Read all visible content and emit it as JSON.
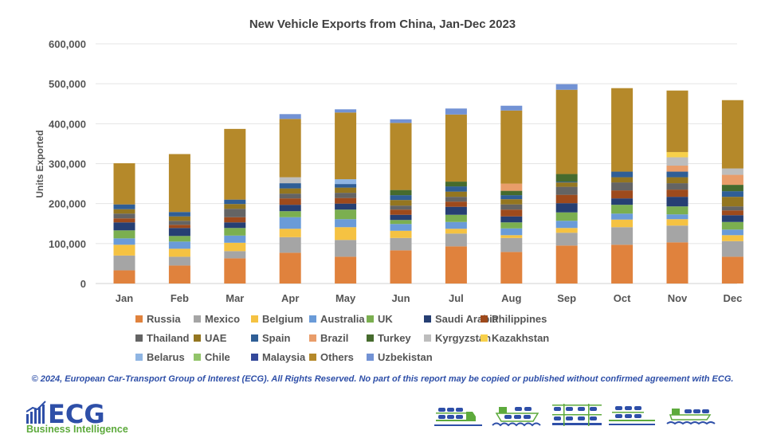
{
  "chart_data": {
    "type": "bar",
    "stacked": true,
    "title": "New Vehicle Exports from China, Jan-Dec 2023",
    "xlabel": "",
    "ylabel": "Units Exported",
    "ylim": [
      0,
      600000
    ],
    "yticks": [
      "0",
      "100,000",
      "200,000",
      "300,000",
      "400,000",
      "500,000",
      "600,000"
    ],
    "grid": true,
    "legend_position": "bottom",
    "categories": [
      "Jan",
      "Feb",
      "Mar",
      "Apr",
      "May",
      "Jun",
      "Jul",
      "Aug",
      "Sep",
      "Oct",
      "Nov",
      "Dec"
    ],
    "series": [
      {
        "name": "Russia",
        "color": "#E0823D",
        "values": [
          33000,
          45000,
          63000,
          77000,
          67000,
          83000,
          93000,
          79000,
          95000,
          97000,
          103000,
          67000
        ]
      },
      {
        "name": "Mexico",
        "color": "#A5A5A5",
        "values": [
          37000,
          22000,
          18000,
          39000,
          42000,
          31000,
          32000,
          35000,
          32000,
          44000,
          42000,
          39000
        ]
      },
      {
        "name": "Belgium",
        "color": "#F5C242",
        "values": [
          27000,
          20000,
          21000,
          21000,
          32000,
          18000,
          12000,
          7000,
          12000,
          19000,
          16000,
          15000
        ]
      },
      {
        "name": "Australia",
        "color": "#6A9BD8",
        "values": [
          16000,
          18000,
          18000,
          29000,
          20000,
          17000,
          17000,
          17000,
          18000,
          15000,
          12000,
          14000
        ]
      },
      {
        "name": "UK",
        "color": "#7BAF50",
        "values": [
          20000,
          14000,
          19000,
          15000,
          24000,
          10000,
          18000,
          15000,
          21000,
          22000,
          20000,
          19000
        ]
      },
      {
        "name": "Saudi Arabia",
        "color": "#263F73",
        "values": [
          20000,
          20000,
          14000,
          16000,
          15000,
          13000,
          20000,
          15000,
          23000,
          16000,
          24000,
          17000
        ]
      },
      {
        "name": "Philippines",
        "color": "#9E4A1C",
        "values": [
          10000,
          8000,
          13000,
          16000,
          14000,
          13000,
          13000,
          17000,
          21000,
          20000,
          18000,
          12000
        ]
      },
      {
        "name": "Thailand",
        "color": "#646464",
        "values": [
          12000,
          10000,
          21000,
          12000,
          13000,
          10000,
          12000,
          13000,
          20000,
          20000,
          16000,
          10000
        ]
      },
      {
        "name": "UAE",
        "color": "#947620",
        "values": [
          11000,
          11000,
          12000,
          13000,
          13000,
          14000,
          13000,
          13000,
          11000,
          13000,
          15000,
          24000
        ]
      },
      {
        "name": "Spain",
        "color": "#2F5E96",
        "values": [
          12000,
          11000,
          11000,
          13000,
          9000,
          12000,
          13000,
          10000,
          2000,
          14000,
          14000,
          14000
        ]
      },
      {
        "name": "Brazil",
        "color": "#E99D6A",
        "values": [
          0,
          0,
          0,
          0,
          0,
          0,
          0,
          18000,
          0,
          0,
          15000,
          25000
        ]
      },
      {
        "name": "Turkey",
        "color": "#466B2E",
        "values": [
          0,
          0,
          0,
          0,
          0,
          13000,
          12000,
          11000,
          19000,
          0,
          0,
          16000
        ]
      },
      {
        "name": "Kyrgyzstan",
        "color": "#BDBDBD",
        "values": [
          0,
          0,
          0,
          15000,
          0,
          0,
          0,
          0,
          0,
          0,
          21000,
          16000
        ]
      },
      {
        "name": "Kazakhstan",
        "color": "#F7D04A",
        "values": [
          0,
          0,
          0,
          0,
          0,
          0,
          0,
          0,
          0,
          0,
          13000,
          0
        ]
      },
      {
        "name": "Belarus",
        "color": "#8FB5E3",
        "values": [
          0,
          0,
          0,
          0,
          12000,
          0,
          0,
          0,
          0,
          0,
          0,
          0
        ]
      },
      {
        "name": "Chile",
        "color": "#92C46A",
        "values": [
          0,
          0,
          0,
          0,
          0,
          0,
          0,
          0,
          0,
          0,
          0,
          0
        ]
      },
      {
        "name": "Malaysia",
        "color": "#34499A",
        "values": [
          0,
          0,
          0,
          0,
          0,
          0,
          0,
          0,
          0,
          0,
          0,
          0
        ]
      },
      {
        "name": "Others",
        "color": "#B5892A",
        "values": [
          103000,
          145000,
          177000,
          146000,
          167000,
          168000,
          168000,
          183000,
          211000,
          209000,
          154000,
          171000
        ]
      },
      {
        "name": "Uzbekistan",
        "color": "#7292D4",
        "values": [
          0,
          0,
          0,
          12000,
          8000,
          9000,
          15000,
          12000,
          14000,
          0,
          0,
          0
        ]
      }
    ]
  },
  "footer": {
    "copyright": "© 2024, European Car-Transport Group of Interest (ECG). All Rights Reserved. No part of this report may be copied or published without confirmed agreement with ECG.",
    "logo_text": "ECG",
    "logo_subtitle": "Business Intelligence",
    "brand_blue": "#2E4FA8",
    "brand_green": "#5DAA3C",
    "transport_icons": [
      "truck-transporter-icon",
      "ro-ro-ship-icon",
      "vehicle-rack-icon",
      "rail-car-transporter-icon",
      "cargo-ship-icon"
    ]
  }
}
